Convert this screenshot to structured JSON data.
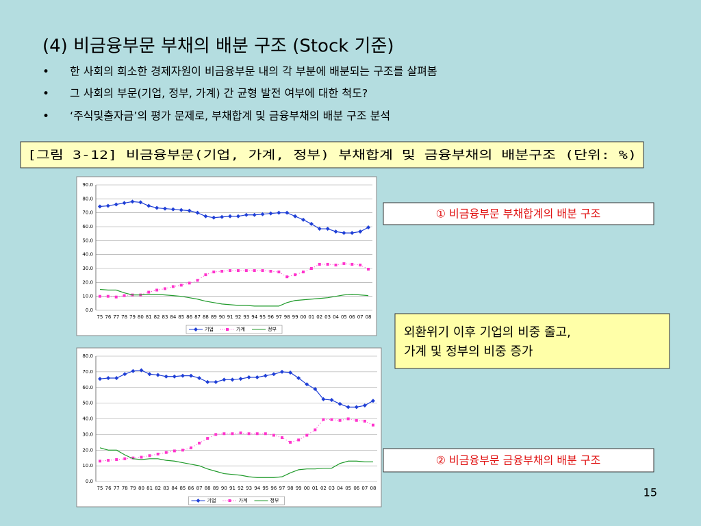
{
  "title": "(4) 비금융부문 부채의 배분 구조 (Stock 기준)",
  "bullets": [
    "한 사회의 희소한 경제자원이 비금융부문 내의 각 부분에 배분되는 구조를 살펴봄",
    "그 사회의 부문(기업, 정부, 가계) 간 균형 발전 여부에 대한 척도?",
    "‘주식및출자금’의 평가 문제로, 부채합계 및 금융부채의 배분 구조 분석"
  ],
  "figure_caption": "[그림 3-12] 비금융부문(기업, 가계, 정부) 부채합계 및 금융부채의 배분구조 (단위: %)",
  "callout_1": "① 비금융부문 부채합계의 배분 구조",
  "callout_2": [
    "외환위기 이후 기업의 비중 줄고,",
    "가계 및 정부의 비중 증가"
  ],
  "callout_3": "② 비금융부문 금융부채의 배분 구조",
  "page_number": "15",
  "chart_data": [
    {
      "type": "line",
      "categories": [
        "75",
        "76",
        "77",
        "78",
        "79",
        "80",
        "81",
        "82",
        "83",
        "84",
        "85",
        "86",
        "87",
        "88",
        "89",
        "90",
        "91",
        "92",
        "93",
        "94",
        "95",
        "96",
        "97",
        "98",
        "99",
        "00",
        "01",
        "02",
        "03",
        "04",
        "05",
        "06",
        "07",
        "08"
      ],
      "ylim": [
        0,
        90
      ],
      "yticks": [
        {
          "value": 0,
          "label": "0.0"
        },
        {
          "value": 10,
          "label": "10.0"
        },
        {
          "value": 20,
          "label": "20.0"
        },
        {
          "value": 30,
          "label": "30.0"
        },
        {
          "value": 40,
          "label": "40.0"
        },
        {
          "value": 50,
          "label": "50.0"
        },
        {
          "value": 60,
          "label": "60.0"
        },
        {
          "value": 70,
          "label": "70.0"
        },
        {
          "value": 80,
          "label": "80.0"
        },
        {
          "value": 90,
          "label": "90.0"
        }
      ],
      "grid": true,
      "legend": "bottom",
      "series": [
        {
          "name": "기업",
          "color": "#1f3fd6",
          "marker": "diamond",
          "linestyle": "solid",
          "values": [
            74.5,
            75,
            76,
            77,
            78,
            77.5,
            75,
            73.5,
            73,
            72.5,
            72,
            71.5,
            70,
            67.5,
            66.5,
            67,
            67.5,
            67.5,
            68.5,
            68.5,
            69,
            69.5,
            70,
            70,
            67.5,
            65,
            62,
            58.5,
            58.5,
            56.5,
            55.5,
            55.5,
            56.5,
            59.5
          ]
        },
        {
          "name": "가계",
          "color": "#ff33cc",
          "marker": "square",
          "linestyle": "dotted",
          "values": [
            10,
            10,
            9.5,
            10.5,
            11,
            11,
            13,
            14.5,
            15.5,
            17,
            18,
            19.5,
            21.5,
            25.5,
            27.5,
            28,
            28.5,
            28.5,
            28.5,
            28.5,
            28.5,
            28,
            27.5,
            24,
            25.5,
            27.5,
            30,
            33,
            33,
            32.5,
            33.5,
            33,
            32.5,
            29.5
          ]
        },
        {
          "name": "정부",
          "color": "#1f9a2a",
          "marker": "none",
          "linestyle": "solid",
          "values": [
            15,
            14.5,
            14.5,
            12.5,
            11,
            11,
            11.5,
            11.5,
            11,
            10.5,
            10,
            9,
            8,
            6.5,
            5.5,
            4.5,
            4,
            3.5,
            3.5,
            3,
            3,
            3,
            3,
            5.5,
            7,
            7.5,
            8,
            8.5,
            9,
            10,
            11,
            11.5,
            11,
            10.5
          ]
        }
      ]
    },
    {
      "type": "line",
      "categories": [
        "75",
        "76",
        "77",
        "78",
        "79",
        "80",
        "81",
        "82",
        "83",
        "84",
        "85",
        "86",
        "87",
        "88",
        "89",
        "90",
        "91",
        "92",
        "93",
        "94",
        "95",
        "96",
        "97",
        "98",
        "99",
        "00",
        "01",
        "02",
        "03",
        "04",
        "05",
        "06",
        "07",
        "08"
      ],
      "ylim": [
        0,
        80
      ],
      "yticks": [
        {
          "value": 0,
          "label": "0.0"
        },
        {
          "value": 10,
          "label": "10.0"
        },
        {
          "value": 20,
          "label": "20.0"
        },
        {
          "value": 30,
          "label": "30.0"
        },
        {
          "value": 40,
          "label": "40.0"
        },
        {
          "value": 50,
          "label": "50.0"
        },
        {
          "value": 60,
          "label": "60.0"
        },
        {
          "value": 70,
          "label": "70.0"
        },
        {
          "value": 80,
          "label": "80.0"
        }
      ],
      "grid": true,
      "legend": "bottom",
      "series": [
        {
          "name": "기업",
          "color": "#1f3fd6",
          "marker": "diamond",
          "linestyle": "solid",
          "values": [
            65.5,
            66,
            66,
            68.5,
            70.5,
            71,
            68.5,
            68,
            67,
            67,
            67.5,
            67.5,
            66,
            63.5,
            63.5,
            65,
            65,
            65.5,
            66.5,
            66.5,
            67.5,
            68.5,
            70,
            69.5,
            66,
            62,
            59,
            52.5,
            52,
            49.5,
            47.5,
            47.5,
            48.5,
            51.5
          ]
        },
        {
          "name": "가계",
          "color": "#ff33cc",
          "marker": "square",
          "linestyle": "dotted",
          "values": [
            13,
            13.5,
            14,
            14.5,
            15,
            15.5,
            16.5,
            17.5,
            18.5,
            19.5,
            20,
            21.5,
            24.5,
            27.5,
            30,
            30.5,
            30.5,
            31,
            30.5,
            30.5,
            30.5,
            29.5,
            28,
            25,
            26.5,
            29.5,
            33,
            39.5,
            39.5,
            39,
            40,
            39,
            38.5,
            36
          ]
        },
        {
          "name": "정부",
          "color": "#1f9a2a",
          "marker": "none",
          "linestyle": "solid",
          "values": [
            21.5,
            20,
            20,
            17,
            14.5,
            14,
            14.5,
            14.5,
            13.5,
            13,
            12,
            11,
            10,
            8,
            6.5,
            5,
            4.5,
            4,
            3,
            2.5,
            2.5,
            2.5,
            3,
            5.5,
            7.5,
            8,
            8,
            8.5,
            8.5,
            11.5,
            13,
            13,
            12.5,
            12.5
          ]
        }
      ]
    }
  ]
}
